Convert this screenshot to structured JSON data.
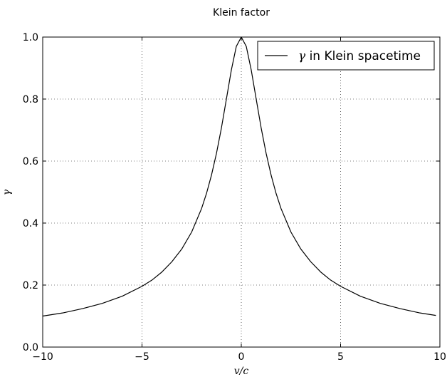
{
  "chart_data": {
    "type": "line",
    "title": "Klein factor",
    "xlabel": "v/c",
    "ylabel": "γ",
    "xlim": [
      -10,
      10
    ],
    "ylim": [
      0.0,
      1.0
    ],
    "xticks": [
      -10,
      -5,
      0,
      5,
      10
    ],
    "xtick_labels": [
      "−10",
      "−5",
      "0",
      "5",
      "10"
    ],
    "yticks": [
      0.0,
      0.2,
      0.4,
      0.6,
      0.8,
      1.0
    ],
    "ytick_labels": [
      "0.0",
      "0.2",
      "0.4",
      "0.6",
      "0.8",
      "1.0"
    ],
    "grid": true,
    "grid_style": "dotted",
    "legend_position": "top-right",
    "series": [
      {
        "name": "γ in Klein spacetime",
        "legend_symbol": "γ",
        "legend_rest": " in Klein spacetime",
        "color": "#000000",
        "x": [
          -10,
          -9,
          -8,
          -7,
          -6,
          -5,
          -4.5,
          -4,
          -3.5,
          -3,
          -2.5,
          -2,
          -1.75,
          -1.5,
          -1.25,
          -1,
          -0.75,
          -0.5,
          -0.25,
          0,
          0.25,
          0.5,
          0.75,
          1,
          1.25,
          1.5,
          1.75,
          2,
          2.5,
          3,
          3.5,
          4,
          4.5,
          5,
          6,
          7,
          8,
          9,
          9.8
        ],
        "y": [
          0.1,
          0.11,
          0.124,
          0.141,
          0.164,
          0.196,
          0.216,
          0.242,
          0.275,
          0.316,
          0.371,
          0.447,
          0.496,
          0.555,
          0.625,
          0.707,
          0.8,
          0.894,
          0.97,
          1.0,
          0.97,
          0.894,
          0.8,
          0.707,
          0.625,
          0.555,
          0.496,
          0.447,
          0.371,
          0.316,
          0.275,
          0.242,
          0.216,
          0.196,
          0.164,
          0.141,
          0.124,
          0.11,
          0.102
        ]
      }
    ]
  }
}
